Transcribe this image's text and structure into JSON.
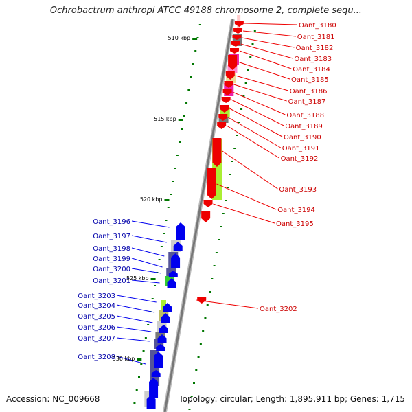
{
  "title": "Ochrobactrum anthropi ATCC 49188 chromosome 2, complete sequ...",
  "footer": {
    "accession": "Accession: NC_009668",
    "topology": "Topology: circular; Length: 1,895,911 bp; Genes: 1,715"
  },
  "colors": {
    "forward": "#0000ee",
    "reverse": "#ee0000",
    "forward_label": "#0000aa",
    "reverse_label": "#cc0000",
    "backbone": "#888888",
    "tick": "#007700"
  },
  "kbp_markers": [
    {
      "label": "510 kbp",
      "kbp": 510
    },
    {
      "label": "515 kbp",
      "kbp": 515
    },
    {
      "label": "520 kbp",
      "kbp": 520
    },
    {
      "label": "525 kbp",
      "kbp": 525
    },
    {
      "label": "530 kbp",
      "kbp": 530
    }
  ],
  "reverse_genes": [
    {
      "label": "Oant_3180"
    },
    {
      "label": "Oant_3181"
    },
    {
      "label": "Oant_3182"
    },
    {
      "label": "Oant_3183"
    },
    {
      "label": "Oant_3184"
    },
    {
      "label": "Oant_3185"
    },
    {
      "label": "Oant_3186"
    },
    {
      "label": "Oant_3187"
    },
    {
      "label": "Oant_3188"
    },
    {
      "label": "Oant_3189"
    },
    {
      "label": "Oant_3190"
    },
    {
      "label": "Oant_3191"
    },
    {
      "label": "Oant_3192"
    },
    {
      "label": "Oant_3193"
    },
    {
      "label": "Oant_3194"
    },
    {
      "label": "Oant_3195"
    },
    {
      "label": "Oant_3202"
    }
  ],
  "forward_genes": [
    {
      "label": "Oant_3196"
    },
    {
      "label": "Oant_3197"
    },
    {
      "label": "Oant_3198"
    },
    {
      "label": "Oant_3199"
    },
    {
      "label": "Oant_3200"
    },
    {
      "label": "Oant_3201"
    },
    {
      "label": "Oant_3203"
    },
    {
      "label": "Oant_3204"
    },
    {
      "label": "Oant_3205"
    },
    {
      "label": "Oant_3206"
    },
    {
      "label": "Oant_3207"
    },
    {
      "label": "Oant_3208"
    }
  ],
  "cog_colors": {
    "gray": "#777777",
    "magenta": "#ee22aa",
    "pink": "#ff88cc",
    "khaki": "#eedd99",
    "yellowgreen": "#aaee33",
    "slate": "#555599",
    "lightgray": "#cccccc",
    "green": "#33cc33",
    "olive": "#bbbb66",
    "lightpink": "#ffcccc"
  }
}
